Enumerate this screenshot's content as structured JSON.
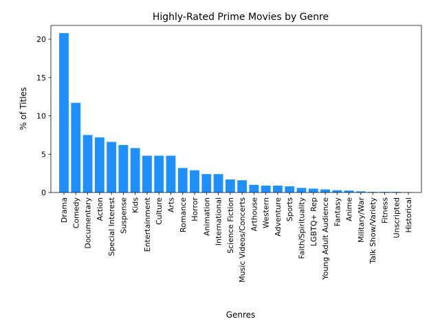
{
  "chart_data": {
    "type": "bar",
    "title": "Highly-Rated Prime Movies by Genre",
    "xlabel": "Genres",
    "ylabel": "% of Titles",
    "ylim": [
      0,
      21.8
    ],
    "yticks": [
      0,
      5,
      10,
      15,
      20
    ],
    "grid": false,
    "bar_color": "#1e90ff",
    "categories": [
      "Drama",
      "Comedy",
      "Documentary",
      "Action",
      "Special Interest",
      "Suspense",
      "Kids",
      "Entertainment",
      "Culture",
      "Arts",
      "Romance",
      "Horror",
      "Animation",
      "International",
      "Science Fiction",
      "Music Videos/Concerts",
      "Arthouse",
      "Western",
      "Adventure",
      "Sports",
      "Faith/Spirituality",
      "LGBTQ+ Rep",
      "Young Adult Audience",
      "Fantasy",
      "Anime",
      "Military/War",
      "Talk Show/Variety",
      "Fitness",
      "Unscripted",
      "Historical"
    ],
    "values": [
      20.8,
      11.7,
      7.5,
      7.2,
      6.6,
      6.2,
      5.8,
      4.8,
      4.8,
      4.8,
      3.2,
      2.9,
      2.4,
      2.4,
      1.7,
      1.6,
      1.0,
      0.9,
      0.9,
      0.8,
      0.6,
      0.5,
      0.4,
      0.3,
      0.25,
      0.15,
      0.08,
      0.08,
      0.08,
      0.05
    ]
  }
}
